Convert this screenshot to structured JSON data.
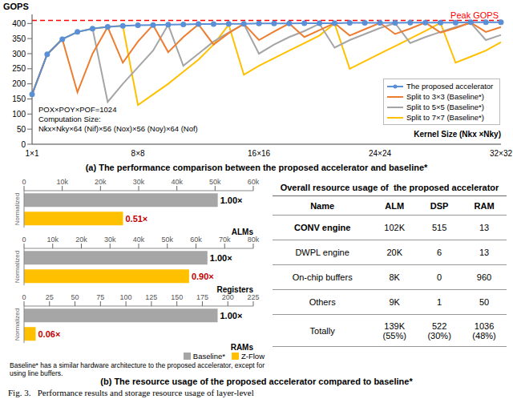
{
  "chart_data": [
    {
      "type": "line",
      "title": "(a) The performance comparison between the proposed accelerator and baseline*",
      "y_label": "GOPS",
      "x_label": "Kernel Size (Nkx ×Nky)",
      "categories": [
        "1×1",
        null,
        null,
        null,
        null,
        null,
        null,
        "8×8",
        null,
        null,
        null,
        null,
        null,
        null,
        null,
        "16×16",
        null,
        null,
        null,
        null,
        null,
        null,
        null,
        "24×24",
        null,
        null,
        null,
        null,
        null,
        null,
        null,
        "32×32"
      ],
      "series": [
        {
          "name": "The proposed accelerator",
          "color": "#5b8fd6",
          "marker": "circle",
          "values": [
            165,
            298,
            348,
            372,
            383,
            389,
            392,
            394,
            395,
            396,
            397,
            398,
            398,
            399,
            399,
            400,
            400,
            400,
            401,
            401,
            401,
            402,
            402,
            402,
            402,
            403,
            403,
            403,
            403,
            404,
            404,
            404
          ]
        },
        {
          "name": "Split to 3×3 (Baseline*)",
          "color": "#ed7d31",
          "marker": "none",
          "values": [
            165,
            298,
            348,
            172,
            300,
            388,
            270,
            340,
            395,
            305,
            355,
            397,
            330,
            368,
            399,
            345,
            373,
            400,
            355,
            378,
            401,
            360,
            381,
            402,
            365,
            383,
            403,
            370,
            385,
            403,
            372,
            388
          ]
        },
        {
          "name": "Split to 5×5 (Baseline*)",
          "color": "#a5a5a5",
          "marker": "none",
          "values": [
            165,
            298,
            348,
            372,
            383,
            140,
            200,
            255,
            310,
            396,
            260,
            300,
            340,
            370,
            398,
            300,
            330,
            355,
            375,
            399,
            320,
            345,
            365,
            385,
            401,
            335,
            355,
            372,
            388,
            402,
            345,
            362
          ]
        },
        {
          "name": "Split to 7×7 (Baseline*)",
          "color": "#ffc000",
          "marker": "none",
          "values": [
            165,
            298,
            348,
            372,
            383,
            389,
            392,
            130,
            165,
            200,
            240,
            280,
            330,
            396,
            230,
            260,
            285,
            310,
            335,
            360,
            400,
            250,
            275,
            300,
            325,
            350,
            375,
            402,
            270,
            290,
            310,
            338
          ]
        }
      ],
      "ylim": [
        0,
        430
      ],
      "yticks": [
        0,
        50,
        100,
        150,
        200,
        250,
        300,
        350,
        400
      ],
      "grid": false,
      "legend": "lower right",
      "annotations": [
        {
          "text": "Peak GOPS",
          "y": 410,
          "color": "#ff0000",
          "line_style": "dashed"
        },
        {
          "text": "POX×POY×POF=1024"
        },
        {
          "text": "Computation Size:"
        },
        {
          "text": "Nkx×Nky×64 (Nif)×56 (Nox)×56 (Noy)×64 (Nof)"
        }
      ]
    },
    {
      "type": "bar",
      "orientation": "horizontal",
      "title": "ALMs",
      "y_label": "Normalized",
      "categories": [
        "Baseline*",
        "Z-Flow"
      ],
      "values": [
        50700,
        25900
      ],
      "ratio_labels": [
        "1.00×",
        "0.51×"
      ],
      "colors": [
        "#a6a6a6",
        "#ffc000"
      ],
      "xlim": [
        0,
        60000
      ],
      "xticks": [
        0,
        {
          "value": 10000,
          "label": "10k"
        },
        {
          "value": 20000,
          "label": "20k"
        },
        {
          "value": 30000,
          "label": "30k"
        },
        {
          "value": 40000,
          "label": "40k"
        },
        {
          "value": 50000,
          "label": "50k"
        },
        {
          "value": 60000,
          "label": "60k"
        }
      ]
    },
    {
      "type": "bar",
      "orientation": "horizontal",
      "title": "Registers",
      "y_label": "Normalized",
      "categories": [
        "Baseline*",
        "Z-Flow"
      ],
      "values": [
        64000,
        57600
      ],
      "ratio_labels": [
        "1.00×",
        "0.90×"
      ],
      "colors": [
        "#a6a6a6",
        "#ffc000"
      ],
      "xlim": [
        0,
        80000
      ],
      "xticks": [
        0,
        {
          "value": 10000,
          "label": "10k"
        },
        {
          "value": 20000,
          "label": "20k"
        },
        {
          "value": 30000,
          "label": "30k"
        },
        {
          "value": 40000,
          "label": "40k"
        },
        {
          "value": 50000,
          "label": "50k"
        },
        {
          "value": 60000,
          "label": "60k"
        },
        {
          "value": 70000,
          "label": "70k"
        },
        {
          "value": 80000,
          "label": "80k"
        }
      ]
    },
    {
      "type": "bar",
      "orientation": "horizontal",
      "title": "RAMs",
      "y_label": "Normalized",
      "categories": [
        "Baseline*",
        "Z-Flow"
      ],
      "values": [
        190,
        11.4
      ],
      "ratio_labels": [
        "1.00×",
        "0.06×"
      ],
      "colors": [
        "#a6a6a6",
        "#ffc000"
      ],
      "xlim": [
        0,
        225
      ],
      "xticks": [
        0,
        25,
        50,
        75,
        100,
        125,
        150,
        175,
        200,
        225
      ],
      "legend": "lower right"
    }
  ],
  "figure": {
    "subcaption_b": "(b) The resource usage of the proposed accelerator compared to baseline*",
    "note": "Baseline* has a similar hardware architecture to the proposed accelerator, except for using line buffers.",
    "caption": "Fig. 3.   Performance results and storage resource usage of layer-level"
  },
  "table": {
    "title": "Overall resource usage of  the proposed accelerator",
    "header": [
      "Name",
      "ALM",
      "DSP",
      "RAM"
    ],
    "rows": [
      [
        "CONV engine",
        "102K",
        515,
        13
      ],
      [
        "DWPL engine",
        "20K",
        6,
        13
      ],
      [
        "On-chip buffers",
        "8K",
        0,
        960
      ],
      [
        "Others",
        "9K",
        1,
        50
      ],
      [
        "Totally",
        "139K (55%)",
        "522 (30%)",
        "1036 (48%)"
      ]
    ]
  }
}
